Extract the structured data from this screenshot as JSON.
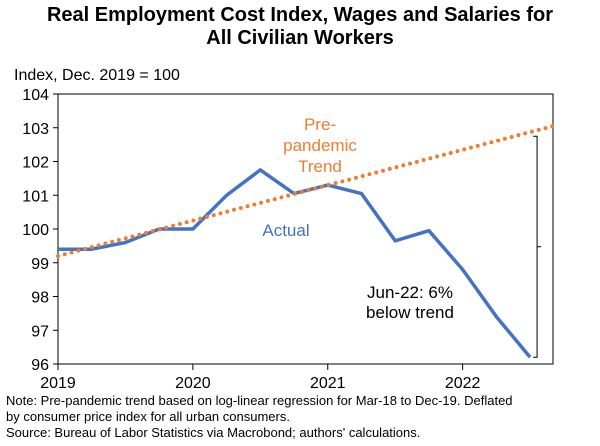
{
  "chart_data": {
    "type": "line",
    "title_lines": [
      "Real Employment  Cost Index, Wages and Salaries for",
      "All Civilian Workers"
    ],
    "ylabel": "Index, Dec. 2019 = 100",
    "xlabel": "",
    "ylim": [
      96,
      104
    ],
    "yticks": [
      96,
      97,
      98,
      99,
      100,
      101,
      102,
      103,
      104
    ],
    "xlim": [
      2019,
      2022.67
    ],
    "xticks": [
      2019,
      2020,
      2021,
      2022
    ],
    "xtick_labels": [
      "2019",
      "2020",
      "2021",
      "2022"
    ],
    "grid": false,
    "series": [
      {
        "name": "Actual",
        "color": "#4472C4",
        "style": "solid",
        "x": [
          2019.0,
          2019.25,
          2019.5,
          2019.75,
          2020.0,
          2020.25,
          2020.5,
          2020.75,
          2021.0,
          2021.25,
          2021.5,
          2021.75,
          2022.0,
          2022.25,
          2022.5
        ],
        "y": [
          99.4,
          99.4,
          99.6,
          100.0,
          100.0,
          101.0,
          101.75,
          101.05,
          101.3,
          101.05,
          99.65,
          99.95,
          98.8,
          97.4,
          96.2
        ]
      },
      {
        "name": "Pre-pandemic Trend",
        "color": "#ED7D31",
        "style": "dotted",
        "x": [
          2019.0,
          2022.67
        ],
        "y": [
          99.2,
          103.05
        ]
      }
    ],
    "annotations": {
      "actual_label": "Actual",
      "trend_label_lines": [
        "Pre-",
        "pandemic",
        "Trend"
      ],
      "gap_label_lines": [
        "Jun-22: 6%",
        "below trend"
      ],
      "gap_bracket": {
        "x": 2022.5,
        "y_top": 102.75,
        "y_bottom": 96.2
      }
    },
    "notes": [
      "Note: Pre-pandemic trend based on log-linear regression for Mar-18 to Dec-19. Deflated",
      "by consumer price index for all urban consumers.",
      "Source: Bureau of Labor Statistics via Macrobond; authors' calculations."
    ]
  }
}
